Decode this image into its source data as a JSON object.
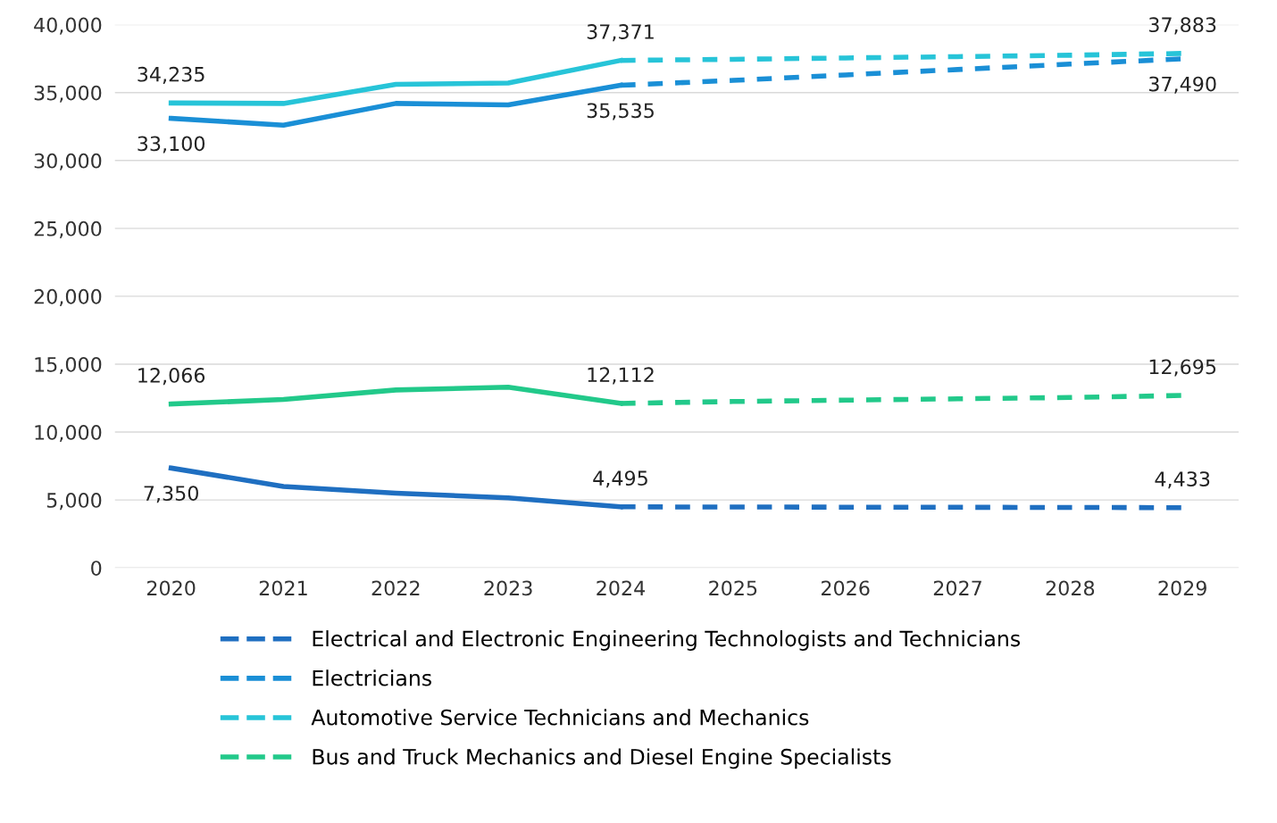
{
  "chart_data": {
    "type": "line",
    "categories": [
      "2020",
      "2021",
      "2022",
      "2023",
      "2024",
      "2025",
      "2026",
      "2027",
      "2028",
      "2029"
    ],
    "series": [
      {
        "color": "#1f6fc1",
        "line_style": "solid",
        "values": [
          7350,
          6000,
          5500,
          5150,
          4495,
          null,
          null,
          null,
          null,
          null
        ]
      },
      {
        "color": "#1a8fd6",
        "line_style": "solid",
        "values": [
          33100,
          32600,
          34200,
          34100,
          35535,
          null,
          null,
          null,
          null,
          null
        ]
      },
      {
        "color": "#27c4d8",
        "line_style": "solid",
        "values": [
          34235,
          34200,
          35600,
          35700,
          37371,
          null,
          null,
          null,
          null,
          null
        ]
      },
      {
        "color": "#22c98a",
        "line_style": "solid",
        "values": [
          12066,
          12400,
          13100,
          13300,
          12112,
          null,
          null,
          null,
          null,
          null
        ]
      },
      {
        "name": "Electrical and Electronic Engineering Technologists and Technicians",
        "color": "#1f6fc1",
        "line_style": "dashed",
        "values": [
          null,
          null,
          null,
          null,
          4495,
          4480,
          4470,
          4460,
          4450,
          4433
        ]
      },
      {
        "name": "Electricians",
        "color": "#1a8fd6",
        "line_style": "dashed",
        "values": [
          null,
          null,
          null,
          null,
          35535,
          35900,
          36300,
          36700,
          37100,
          37490
        ]
      },
      {
        "name": "Automotive Service Technicians and Mechanics",
        "color": "#27c4d8",
        "line_style": "dashed",
        "values": [
          null,
          null,
          null,
          null,
          37371,
          37450,
          37550,
          37650,
          37750,
          37883
        ]
      },
      {
        "name": "Bus and Truck Mechanics and Diesel Engine Specialists",
        "color": "#22c98a",
        "line_style": "dashed",
        "values": [
          null,
          null,
          null,
          null,
          12112,
          12250,
          12350,
          12450,
          12550,
          12695
        ]
      }
    ],
    "ylim": [
      0,
      40000
    ],
    "yticks": [
      {
        "value": 0,
        "label": "0"
      },
      {
        "value": 5000,
        "label": "5,000"
      },
      {
        "value": 10000,
        "label": "10,000"
      },
      {
        "value": 15000,
        "label": "15,000"
      },
      {
        "value": 20000,
        "label": "20,000"
      },
      {
        "value": 25000,
        "label": "25,000"
      },
      {
        "value": 30000,
        "label": "30,000"
      },
      {
        "value": 35000,
        "label": "35,000"
      },
      {
        "value": 40000,
        "label": "40,000"
      }
    ],
    "grid": "y",
    "legend": "bottom",
    "marker": "none",
    "annotations": [
      {
        "text": "7,350",
        "x": "2020",
        "y": 7350
      },
      {
        "text": "4,495",
        "x": "2024",
        "y": 4495
      },
      {
        "text": "4,433",
        "x": "2029",
        "y": 4433
      },
      {
        "text": "33,100",
        "x": "2020",
        "y": 33100
      },
      {
        "text": "35,535",
        "x": "2024",
        "y": 35535
      },
      {
        "text": "37,490",
        "x": "2029",
        "y": 37490
      },
      {
        "text": "34,235",
        "x": "2020",
        "y": 34235
      },
      {
        "text": "37,371",
        "x": "2024",
        "y": 37371
      },
      {
        "text": "37,883",
        "x": "2029",
        "y": 37883
      },
      {
        "text": "12,066",
        "x": "2020",
        "y": 12066
      },
      {
        "text": "12,112",
        "x": "2024",
        "y": 12112
      },
      {
        "text": "12,695",
        "x": "2029",
        "y": 12695
      }
    ]
  }
}
